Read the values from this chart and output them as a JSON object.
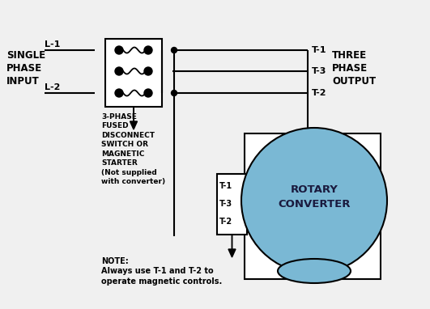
{
  "bg_color": "#f0f0f0",
  "line_color": "#000000",
  "rotary_fill": "#7ab8d4",
  "rotary_outline": "#000000",
  "text_single_phase": "SINGLE\nPHASE\nINPUT",
  "text_three_phase": "THREE\nPHASE\nOUTPUT",
  "text_L1": "L-1",
  "text_L2": "L-2",
  "text_T1": "T-1",
  "text_T2": "T-2",
  "text_T3": "T-3",
  "text_box_label": "3-PHASE\nFUSED\nDISCONNECT\nSWITCH OR\nMAGNETIC\nSTARTER\n(Not supplied\nwith converter)",
  "text_rotary": "ROTARY\nCONVERTER",
  "text_note": "NOTE:\nAlways use T-1 and T-2 to\noperate magnetic controls.",
  "figsize": [
    5.31,
    3.82
  ],
  "dpi": 100
}
